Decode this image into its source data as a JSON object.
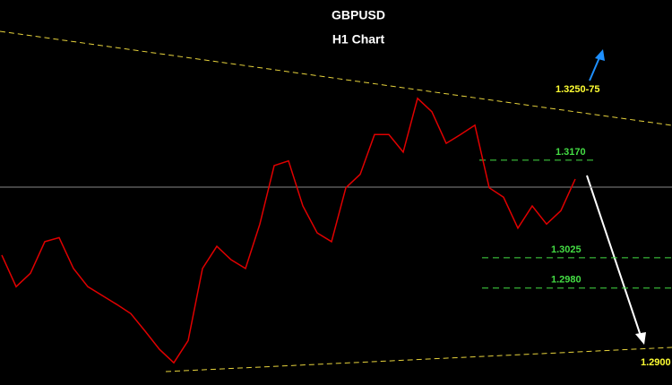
{
  "chart_data": {
    "type": "line",
    "title": "GBPUSD",
    "subtitle": "H1 Chart",
    "values": [
      1.3029,
      1.2982,
      1.3002,
      1.3049,
      1.3055,
      1.3009,
      1.2982,
      1.2969,
      1.2956,
      1.2942,
      1.2916,
      1.2889,
      1.2869,
      1.2902,
      1.3009,
      1.3042,
      1.3022,
      1.3009,
      1.3075,
      1.3162,
      1.3169,
      1.3102,
      1.3062,
      1.3049,
      1.3129,
      1.3149,
      1.3208,
      1.3208,
      1.3182,
      1.3262,
      1.3242,
      1.3195,
      1.3208,
      1.3222,
      1.3129,
      1.3115,
      1.3069,
      1.3102,
      1.3075,
      1.3095,
      1.3142
    ],
    "color": "#e00000",
    "ylim": [
      1.2836,
      1.3408
    ],
    "current_price": 1.313,
    "levels": [
      {
        "value": 1.317,
        "label": "1.3170"
      },
      {
        "value": 1.3025,
        "label": "1.3025"
      },
      {
        "value": 1.298,
        "label": "1.2980"
      }
    ],
    "level_color": "#44dd44",
    "annotations": [
      "1.3250-75",
      "1.2900"
    ]
  }
}
